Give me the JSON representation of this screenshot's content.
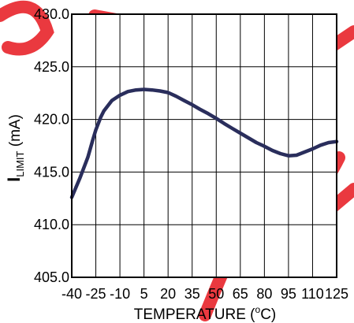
{
  "chart_data": {
    "type": "line",
    "xlabel": {
      "main": "TEMPERATURE (",
      "sup": "o",
      "unit": "C)"
    },
    "ylabel": {
      "symbol": "I",
      "subscript": "LIMIT",
      "unit": " (mA)"
    },
    "x_ticks": [
      "-40",
      "-25",
      "-10",
      "5",
      "20",
      "35",
      "50",
      "65",
      "80",
      "95",
      "110",
      "125"
    ],
    "y_ticks": [
      "405.0",
      "410.0",
      "415.0",
      "420.0",
      "425.0",
      "430.0"
    ],
    "xlim": [
      -40,
      125
    ],
    "ylim": [
      405,
      430
    ],
    "grid": true,
    "series_color": "#2a2e5c",
    "watermark_color": "#e8232a",
    "series": [
      {
        "x": [
          -40,
          -35,
          -30,
          -27,
          -25,
          -22,
          -20,
          -15,
          -10,
          -5,
          0,
          5,
          10,
          15,
          20,
          25,
          30,
          35,
          40,
          45,
          50,
          55,
          60,
          65,
          70,
          75,
          80,
          85,
          90,
          95,
          100,
          105,
          110,
          115,
          120,
          125
        ],
        "y": [
          412.6,
          414.4,
          416.4,
          418.0,
          419.0,
          420.2,
          420.8,
          421.8,
          422.3,
          422.65,
          422.8,
          422.85,
          422.8,
          422.7,
          422.55,
          422.2,
          421.8,
          421.4,
          420.95,
          420.55,
          420.1,
          419.6,
          419.15,
          418.7,
          418.25,
          417.8,
          417.45,
          417.05,
          416.75,
          416.55,
          416.6,
          416.9,
          417.2,
          417.55,
          417.8,
          417.9
        ]
      }
    ]
  }
}
